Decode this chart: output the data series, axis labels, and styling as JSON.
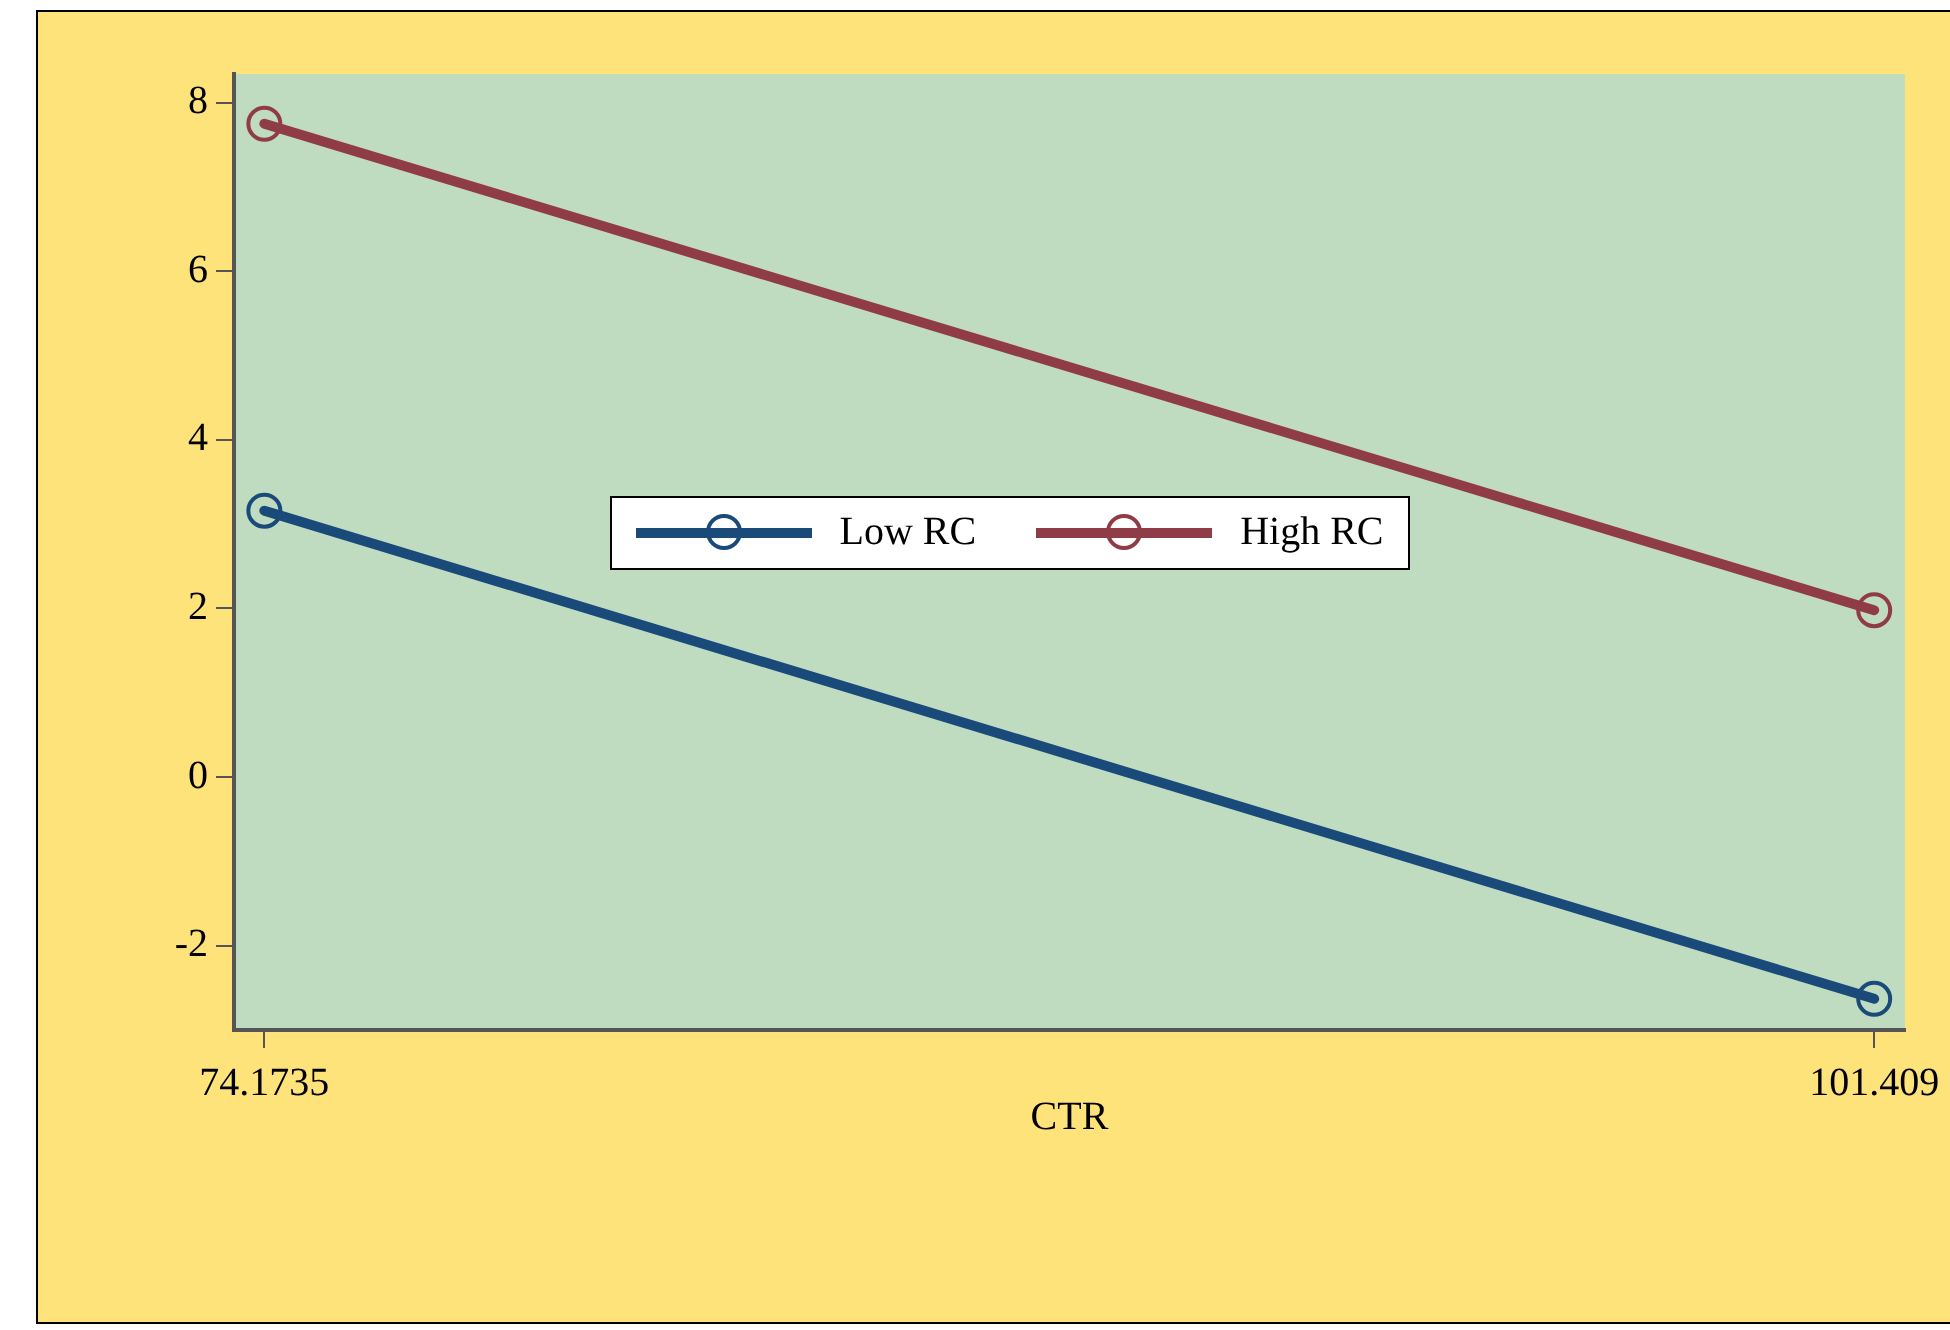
{
  "chart_data": {
    "type": "line",
    "xlabel": "CTR",
    "x": [
      74.1735,
      101.409
    ],
    "series": [
      {
        "name": "Low RC",
        "color": "#1a4a7a",
        "values": [
          3.16,
          -2.63
        ]
      },
      {
        "name": "High RC",
        "color": "#903c46",
        "values": [
          7.75,
          1.98
        ]
      }
    ],
    "xlim": [
      73.66,
      101.93
    ],
    "xticks": [
      74.1735,
      101.409
    ],
    "ylim": [
      -3,
      8.34
    ],
    "yticks": [
      -2,
      0,
      2,
      4,
      6,
      8
    ],
    "grid": false,
    "legend": "center",
    "marker": "circle",
    "line_style": "solid"
  }
}
